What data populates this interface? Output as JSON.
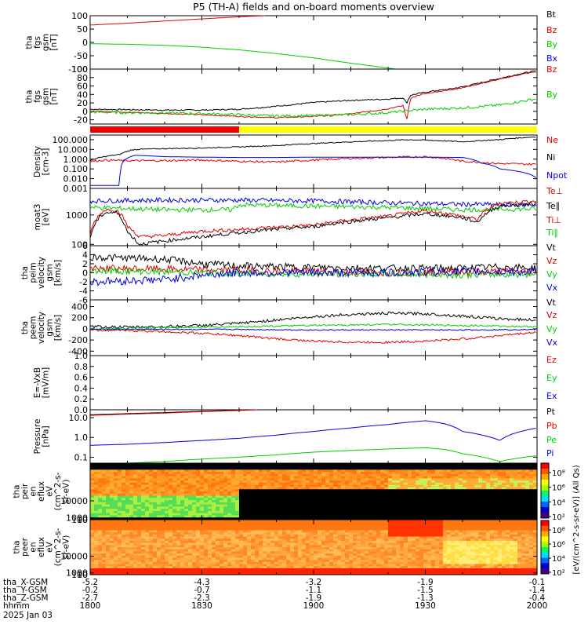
{
  "title": "P5 (TH-A) fields and on-board moments overview",
  "colors": {
    "black": "#000000",
    "red": "#dd0000",
    "green": "#00cc00",
    "blue": "#0000dd",
    "yellow": "#ffff00",
    "bar_red": "#ee0000"
  },
  "chart_data": [
    {
      "id": "fgs_gsm_full",
      "type": "line",
      "ylabel_lines": [
        "tha",
        "fgs",
        "gsm",
        "[nT]"
      ],
      "ylim": [
        -100,
        100
      ],
      "yticks": [
        100,
        50,
        0,
        -50,
        -100
      ],
      "legend": [
        "Bt",
        "Bz",
        "By",
        "Bx"
      ],
      "series": [
        {
          "name": "Bz",
          "color": "red",
          "x": [
            0,
            10,
            20,
            30,
            40,
            47
          ],
          "y": [
            65,
            72,
            80,
            88,
            96,
            100
          ]
        },
        {
          "name": "By",
          "color": "green",
          "x": [
            0,
            10,
            20,
            30,
            40,
            50,
            60,
            70,
            82
          ],
          "y": [
            -5,
            -7,
            -11,
            -18,
            -28,
            -42,
            -58,
            -78,
            -100
          ]
        }
      ]
    },
    {
      "id": "fgs_gsm_zoom",
      "type": "line",
      "ylabel_lines": [
        "tha",
        "fgs",
        "gsm",
        "[nT]"
      ],
      "ylim": [
        -30,
        100
      ],
      "yticks": [
        100,
        80,
        60,
        40,
        20,
        0,
        -20
      ],
      "legend": [
        "Bz",
        "By"
      ],
      "series": [
        {
          "name": "Bt",
          "color": "black",
          "x": [
            0,
            10,
            20,
            30,
            40,
            50,
            60,
            70,
            80,
            84,
            85,
            86,
            88,
            92,
            96,
            100,
            104,
            108,
            112,
            116,
            120
          ],
          "y": [
            5,
            4,
            3,
            3,
            5,
            12,
            21,
            26,
            29,
            32,
            20,
            38,
            42,
            48,
            52,
            58,
            66,
            74,
            82,
            90,
            96
          ],
          "noise": 1.5
        },
        {
          "name": "Bz",
          "color": "red",
          "x": [
            0,
            10,
            20,
            30,
            40,
            50,
            60,
            70,
            80,
            84,
            85,
            86,
            88,
            92,
            96,
            100,
            104,
            108,
            112,
            116,
            120
          ],
          "y": [
            1,
            -2,
            -5,
            -8,
            -12,
            -15,
            -12,
            -5,
            5,
            14,
            -20,
            30,
            38,
            45,
            50,
            56,
            64,
            72,
            80,
            88,
            94
          ],
          "noise": 1.2
        },
        {
          "name": "By",
          "color": "green",
          "x": [
            0,
            10,
            20,
            30,
            40,
            50,
            60,
            70,
            80,
            86,
            90,
            100,
            110,
            120
          ],
          "y": [
            -2,
            -3,
            -4,
            -5,
            -8,
            -11,
            -10,
            -8,
            -3,
            2,
            5,
            8,
            15,
            30
          ],
          "noise": 3
        }
      ]
    },
    {
      "id": "mode_bar",
      "type": "bar",
      "segments": [
        {
          "from": 0,
          "to": 40,
          "color": "bar_red"
        },
        {
          "from": 40,
          "to": 120,
          "color": "yellow"
        }
      ]
    },
    {
      "id": "density",
      "type": "line",
      "log": true,
      "ylabel_lines": [
        "Density",
        "[cm-3]"
      ],
      "ylim": [
        0.001,
        300
      ],
      "yticks": [
        100,
        10,
        1,
        0.1,
        0.01,
        0.001
      ],
      "ytick_labels": [
        "100.000",
        "10.000",
        "1.000",
        "0.100",
        "0.010",
        "0.001"
      ],
      "legend": [
        "Ne",
        "Ni",
        "Npot"
      ],
      "series": [
        {
          "name": "Ne",
          "color": "black",
          "x": [
            0,
            8,
            12,
            20,
            30,
            40,
            50,
            60,
            70,
            80,
            85,
            90,
            100,
            110,
            120
          ],
          "y": [
            0.7,
            3,
            10,
            12,
            14,
            18,
            25,
            40,
            60,
            80,
            100,
            90,
            60,
            100,
            200
          ],
          "noise": 0.05
        },
        {
          "name": "Ni",
          "color": "red",
          "x": [
            0,
            4,
            10,
            20,
            30,
            40,
            50,
            60,
            70,
            80,
            90,
            100,
            110,
            120
          ],
          "y": [
            0.6,
            0.8,
            0.7,
            0.7,
            0.8,
            0.6,
            0.5,
            0.8,
            1.2,
            1.5,
            1.8,
            0.6,
            0.35,
            0.3
          ],
          "noise": 0.1
        },
        {
          "name": "Npot",
          "color": "blue",
          "x": [
            0,
            8,
            12,
            20,
            30,
            40,
            50,
            60,
            70,
            80,
            90,
            100,
            105,
            110,
            120
          ],
          "y": [
            0.002,
            0.002,
            2.5,
            1.8,
            1.6,
            1.5,
            1.5,
            1.6,
            1.6,
            1.6,
            1.6,
            1.5,
            0.4,
            0.1,
            0.01
          ]
        }
      ]
    },
    {
      "id": "temperature",
      "type": "line",
      "log": true,
      "ylabel_lines": [
        "moat3",
        "[eV]"
      ],
      "ylim": [
        90,
        8000
      ],
      "yticks": [
        1000,
        100
      ],
      "ytick_labels": [
        "1000",
        "100"
      ],
      "legend": [
        "Te⊥",
        "Te∥",
        "Ti⊥",
        "Ti∥"
      ],
      "series": [
        {
          "name": "Ti⊥",
          "color": "blue",
          "x": [
            0,
            20,
            40,
            60,
            80,
            100,
            120
          ],
          "y": [
            3000,
            3200,
            3200,
            3000,
            2600,
            2300,
            2200
          ],
          "noise": 0.08
        },
        {
          "name": "Ti∥",
          "color": "green",
          "x": [
            0,
            20,
            38,
            40,
            60,
            80,
            100,
            120
          ],
          "y": [
            1800,
            1500,
            1500,
            2200,
            2000,
            1800,
            1500,
            1600
          ],
          "noise": 0.08
        },
        {
          "name": "Te⊥",
          "color": "red",
          "x": [
            0,
            4,
            7,
            10,
            13,
            20,
            30,
            40,
            60,
            80,
            90,
            100,
            104,
            110,
            120
          ],
          "y": [
            200,
            1500,
            1500,
            400,
            180,
            200,
            280,
            320,
            450,
            900,
            1400,
            900,
            700,
            2500,
            3000
          ],
          "noise": 0.06
        },
        {
          "name": "Te∥",
          "color": "black",
          "x": [
            0,
            4,
            7,
            10,
            13,
            20,
            30,
            40,
            60,
            80,
            90,
            100,
            104,
            110,
            120
          ],
          "y": [
            150,
            1200,
            1200,
            250,
            100,
            130,
            180,
            250,
            400,
            800,
            1100,
            800,
            550,
            2000,
            2400
          ],
          "noise": 0.06
        }
      ]
    },
    {
      "id": "velocity_peim",
      "type": "line",
      "ylabel_lines": [
        "tha",
        "peim",
        "velocity",
        "gsm",
        "[km/s]"
      ],
      "ylim": [
        -6,
        6
      ],
      "yticks": [
        6,
        4,
        2,
        0,
        -2,
        -4,
        -6
      ],
      "legend": [
        "Vt",
        "Vz",
        "Vy",
        "Vx"
      ],
      "series": [
        {
          "name": "Vt",
          "color": "black",
          "x": [
            0,
            20,
            30,
            40,
            60,
            80,
            100,
            110,
            120
          ],
          "y": [
            3.5,
            3,
            2,
            1.5,
            1.2,
            1,
            1,
            1.3,
            1
          ],
          "noise": 0.8
        },
        {
          "name": "Vz",
          "color": "red",
          "x": [
            0,
            20,
            40,
            60,
            80,
            100,
            120
          ],
          "y": [
            1,
            0.8,
            0.5,
            0.3,
            0,
            0.2,
            0.3
          ],
          "noise": 0.8
        },
        {
          "name": "Vy",
          "color": "green",
          "x": [
            0,
            20,
            40,
            60,
            80,
            100,
            120
          ],
          "y": [
            0.5,
            0.2,
            -0.2,
            -0.3,
            -0.3,
            -0.5,
            -0.3
          ],
          "noise": 0.7
        },
        {
          "name": "Vx",
          "color": "blue",
          "x": [
            0,
            20,
            30,
            40,
            60,
            80,
            100,
            120
          ],
          "y": [
            -2,
            -1.5,
            -0.5,
            0,
            0,
            0,
            0.3,
            0.2
          ],
          "noise": 0.9
        }
      ]
    },
    {
      "id": "velocity_peem",
      "type": "line",
      "ylabel_lines": [
        "tha",
        "peem",
        "velocity",
        "gsm",
        "[km/s]"
      ],
      "ylim": [
        -480,
        520
      ],
      "yticks": [
        400,
        200,
        0,
        -200,
        -400
      ],
      "legend": [
        "Vt",
        "Vz",
        "Vy",
        "Vx"
      ],
      "series": [
        {
          "name": "Vt",
          "color": "black",
          "x": [
            0,
            10,
            20,
            30,
            40,
            50,
            60,
            70,
            80,
            90,
            100,
            110,
            120
          ],
          "y": [
            40,
            30,
            40,
            60,
            100,
            160,
            220,
            260,
            280,
            270,
            230,
            180,
            160
          ],
          "noise": 25
        },
        {
          "name": "Vz",
          "color": "red",
          "x": [
            0,
            10,
            20,
            30,
            40,
            50,
            60,
            70,
            80,
            90,
            100,
            110,
            120
          ],
          "y": [
            -20,
            -30,
            -50,
            -80,
            -120,
            -180,
            -220,
            -240,
            -240,
            -220,
            -180,
            -120,
            -60
          ],
          "noise": 20
        },
        {
          "name": "Vy",
          "color": "green",
          "x": [
            0,
            20,
            40,
            60,
            80,
            100,
            120
          ],
          "y": [
            0,
            20,
            40,
            60,
            80,
            60,
            40
          ],
          "noise": 15
        },
        {
          "name": "Vx",
          "color": "blue",
          "x": [
            0,
            20,
            40,
            60,
            80,
            100,
            120
          ],
          "y": [
            -10,
            -10,
            -10,
            -20,
            -20,
            -20,
            -10
          ],
          "noise": 10
        }
      ]
    },
    {
      "id": "efield",
      "type": "line",
      "ylabel_lines": [
        "E=-VxB",
        "[mV/m]"
      ],
      "ylim": [
        0,
        1
      ],
      "yticks": [
        1.0,
        0.8,
        0.6,
        0.4,
        0.2,
        0.0
      ],
      "ytick_labels": [
        "1.0",
        "0.8",
        "0.6",
        "0.4",
        "0.2",
        "0.0"
      ],
      "legend": [
        "Ez",
        "Ey",
        "Ex"
      ],
      "series": []
    },
    {
      "id": "pressure",
      "type": "line",
      "log": true,
      "ylabel_lines": [
        "Pressure",
        "[nPa]"
      ],
      "ylim": [
        0.05,
        25
      ],
      "yticks": [
        10,
        1,
        0.1
      ],
      "ytick_labels": [
        "10.0",
        "1.0",
        "0.1"
      ],
      "legend": [
        "Pt",
        "Pb",
        "Pe",
        "Pi"
      ],
      "series": [
        {
          "name": "Pt",
          "color": "black",
          "x": [
            0,
            10,
            20,
            30,
            40,
            45
          ],
          "y": [
            14,
            16,
            18,
            21,
            24,
            25
          ]
        },
        {
          "name": "Pb",
          "color": "red",
          "x": [
            0,
            10,
            20,
            30,
            40,
            45
          ],
          "y": [
            13,
            15,
            17,
            20,
            23,
            25
          ]
        },
        {
          "name": "Pi",
          "color": "blue",
          "x": [
            0,
            10,
            20,
            30,
            40,
            50,
            60,
            70,
            80,
            90,
            95,
            100,
            110,
            120
          ],
          "y": [
            0.4,
            0.45,
            0.55,
            0.7,
            0.9,
            1.3,
            2,
            3,
            4.5,
            7,
            5,
            2,
            0.7,
            3
          ]
        },
        {
          "name": "Pe",
          "color": "green",
          "x": [
            0,
            10,
            20,
            30,
            40,
            50,
            60,
            70,
            80,
            90,
            95,
            100,
            110,
            120
          ],
          "y": [
            0.05,
            0.05,
            0.06,
            0.08,
            0.1,
            0.13,
            0.18,
            0.22,
            0.26,
            0.3,
            0.25,
            0.15,
            0.06,
            0.12
          ]
        }
      ]
    },
    {
      "id": "peir_spec",
      "type": "heatmap",
      "ylabel_lines": [
        "tha",
        "peir",
        "en",
        "eflux",
        "eV",
        "(cm^2-s-",
        "sr-eV)"
      ],
      "ylim": [
        5,
        30000
      ],
      "yticks": [
        10000,
        1000,
        100,
        10
      ],
      "ytick_labels": [
        "10000",
        "1000",
        "100",
        "10"
      ]
    },
    {
      "id": "peer_spec",
      "type": "heatmap",
      "ylabel_lines": [
        "tha",
        "peer",
        "en",
        "eflux",
        "eV",
        "(cm^2-s-",
        "sr-eV)"
      ],
      "ylim": [
        5,
        30000
      ],
      "yticks": [
        10000,
        1000,
        100,
        10
      ],
      "ytick_labels": [
        "10000",
        "1000",
        "100",
        "10"
      ]
    }
  ],
  "colorbar": {
    "label": "[eV/(cm^2-s-sr-eV)] (All Qs)",
    "upper_ticks": [
      "10⁸",
      "10⁶",
      "10⁴",
      "10²"
    ],
    "lower_ticks": [
      "10⁸",
      "10⁶",
      "10⁴",
      "10²"
    ]
  },
  "time_axis": {
    "x_range": [
      0,
      120
    ],
    "rows": [
      {
        "label": "tha_X-GSM",
        "values": [
          "-5.2",
          "-4.3",
          "-3.2",
          "-1.9",
          "-0.1"
        ]
      },
      {
        "label": "tha_Y-GSM",
        "values": [
          "-0.2",
          "-0.7",
          "-1.1",
          "-1.5",
          "-1.4"
        ]
      },
      {
        "label": "tha_Z-GSM",
        "values": [
          "-2.7",
          "-2.3",
          "-1.9",
          "-1.3",
          "-0.4"
        ]
      },
      {
        "label": "hhmm",
        "values": [
          "1800",
          "1830",
          "1900",
          "1930",
          "2000"
        ]
      }
    ],
    "date": "2025 Jan 03"
  }
}
